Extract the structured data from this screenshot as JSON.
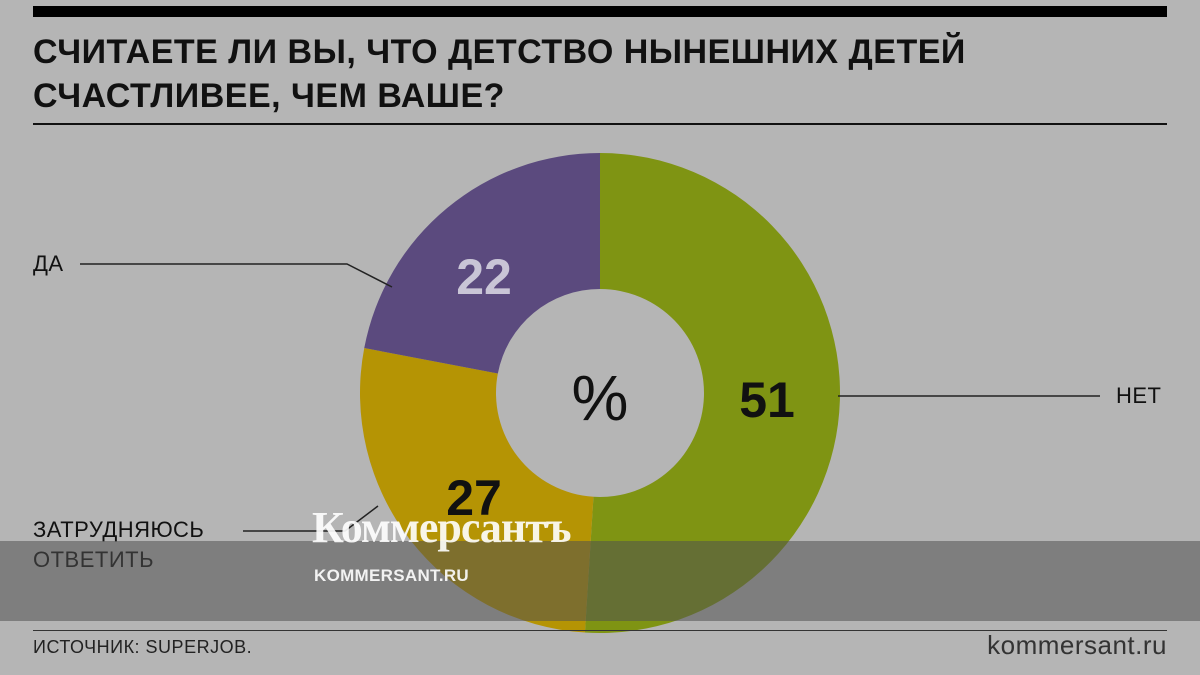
{
  "title_lines": [
    "СЧИТАЕТЕ ЛИ ВЫ, ЧТО ДЕТСТВО НЫНЕШНИХ ДЕТЕЙ",
    "СЧАСТЛИВЕЕ, ЧЕМ ВАШЕ?"
  ],
  "center_label": "%",
  "source": "ИСТОЧНИК: SUPERJOB.",
  "site": "kommersant.ru",
  "watermark": {
    "logo": "Коммерсантъ",
    "url": "KOMMERSANT.RU"
  },
  "colors": {
    "background": "#b5b5b5",
    "net": "#7f9413",
    "da": "#5b4a7e",
    "zatrud": "#b59404"
  },
  "chart_data": {
    "type": "pie",
    "donut": true,
    "unit": "%",
    "slices": [
      {
        "label": "НЕТ",
        "value": 51,
        "color": "#7f9413"
      },
      {
        "label": "ЗАТРУДНЯЮСЬ ОТВЕТИТЬ",
        "value": 27,
        "color": "#b59404"
      },
      {
        "label": "ДА",
        "value": 22,
        "color": "#5b4a7e"
      }
    ],
    "value_labels": [
      "51",
      "27",
      "22"
    ]
  }
}
